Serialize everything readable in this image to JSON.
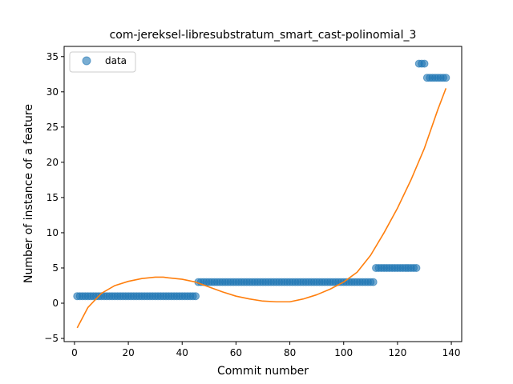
{
  "chart_data": {
    "type": "scatter",
    "title": "com-jereksel-libresubstratum_smart_cast-polinomial_3",
    "xlabel": "Commit number",
    "ylabel": "Number of instance of a feature",
    "xlim": [
      -3.85,
      143.85
    ],
    "ylim": [
      -5.45,
      36.45
    ],
    "xticks": [
      0,
      20,
      40,
      60,
      80,
      100,
      120,
      140
    ],
    "yticks": [
      -5,
      0,
      5,
      10,
      15,
      20,
      25,
      30,
      35
    ],
    "grid": false,
    "legend": {
      "placement": "top-left",
      "entries": [
        "data"
      ]
    },
    "series": [
      {
        "name": "data",
        "kind": "scatter",
        "color": "#1f77b4",
        "segments": [
          {
            "x_from": 1,
            "x_to": 45,
            "y": 1
          },
          {
            "x_from": 46,
            "x_to": 111,
            "y": 3
          },
          {
            "x_from": 112,
            "x_to": 127,
            "y": 5
          },
          {
            "x_from": 128,
            "x_to": 130,
            "y": 34
          },
          {
            "x_from": 131,
            "x_to": 138,
            "y": 32
          }
        ]
      },
      {
        "kind": "line",
        "color": "#ff7f0e",
        "x": [
          1,
          5,
          10,
          15,
          20,
          25,
          30,
          33,
          35,
          40,
          45,
          50,
          55,
          60,
          65,
          70,
          75,
          80,
          85,
          90,
          95,
          100,
          105,
          110,
          115,
          120,
          125,
          130,
          135,
          138
        ],
        "y": [
          -3.5,
          -0.6,
          1.4,
          2.5,
          3.1,
          3.5,
          3.7,
          3.7,
          3.6,
          3.4,
          3.0,
          2.3,
          1.6,
          1.0,
          0.6,
          0.3,
          0.2,
          0.2,
          0.6,
          1.2,
          2.0,
          3.0,
          4.4,
          6.8,
          10.0,
          13.5,
          17.5,
          22.0,
          27.5,
          30.5
        ]
      }
    ]
  }
}
